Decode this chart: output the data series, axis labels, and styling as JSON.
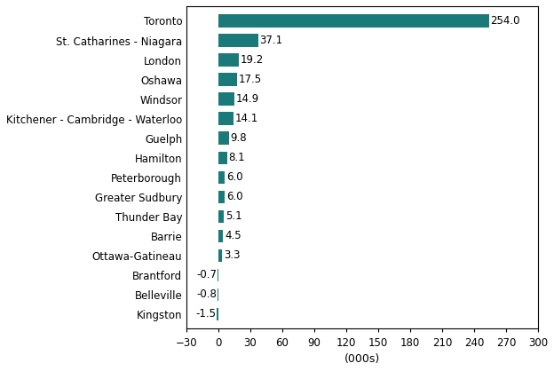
{
  "categories": [
    "Toronto",
    "St. Catharines - Niagara",
    "London",
    "Oshawa",
    "Windsor",
    "Kitchener - Cambridge - Waterloo",
    "Guelph",
    "Hamilton",
    "Peterborough",
    "Greater Sudbury",
    "Thunder Bay",
    "Barrie",
    "Ottawa-Gatineau",
    "Brantford",
    "Belleville",
    "Kingston"
  ],
  "values": [
    254.0,
    37.1,
    19.2,
    17.5,
    14.9,
    14.1,
    9.8,
    8.1,
    6.0,
    6.0,
    5.1,
    4.5,
    3.3,
    -0.7,
    -0.8,
    -1.5
  ],
  "bar_color": "#1a7a7a",
  "xlabel": "(000s)",
  "xlim": [
    -30,
    300
  ],
  "xticks": [
    -30,
    0,
    30,
    60,
    90,
    120,
    150,
    180,
    210,
    240,
    270,
    300
  ],
  "label_fontsize": 8.5,
  "tick_fontsize": 8.5,
  "xlabel_fontsize": 9,
  "bar_height": 0.65,
  "figsize": [
    6.24,
    4.18
  ],
  "dpi": 100
}
